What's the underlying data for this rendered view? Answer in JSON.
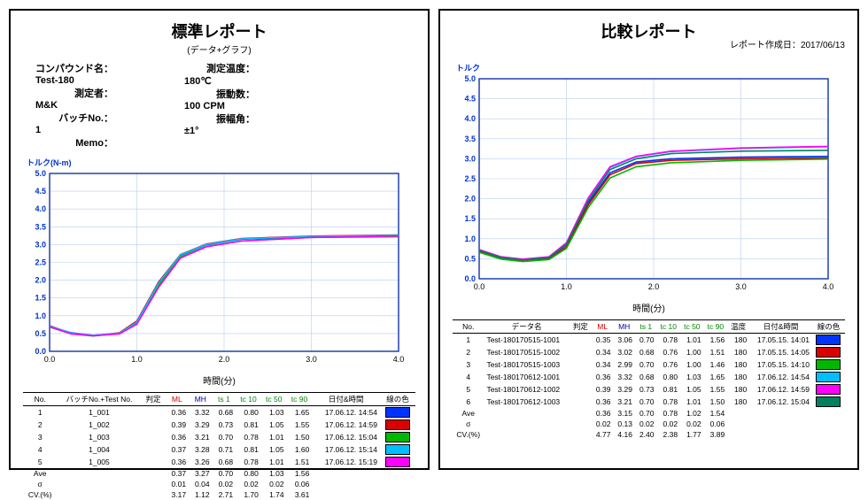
{
  "left": {
    "title": "標準レポート",
    "subtitle": "(データ+グラフ)",
    "meta": {
      "compound_k": "コンパウンド名：",
      "compound_v": "Test-180",
      "operator_k": "測定者：",
      "operator_v": "M&K",
      "batch_k": "バッチNo.：",
      "batch_v": "1",
      "memo_k": "Memo：",
      "memo_v": "",
      "temp_k": "測定温度：",
      "temp_v": "180℃",
      "freq_k": "振動数：",
      "freq_v": "100 CPM",
      "angle_k": "振幅角：",
      "angle_v": "±1°"
    },
    "chart": {
      "ylabel": "トルク(N-m)",
      "xlabel": "時間(分)",
      "xlim": [
        0,
        4
      ],
      "ylim": [
        0,
        5
      ],
      "xtick": 1.0,
      "ytick": 0.5,
      "grid_color": "#b8ccee",
      "border_color": "#1133aa",
      "series": [
        {
          "color": "#0033ff",
          "pts": [
            [
              0,
              0.7
            ],
            [
              0.25,
              0.52
            ],
            [
              0.5,
              0.45
            ],
            [
              0.8,
              0.5
            ],
            [
              1.0,
              0.8
            ],
            [
              1.25,
              1.9
            ],
            [
              1.5,
              2.7
            ],
            [
              1.8,
              3.0
            ],
            [
              2.2,
              3.15
            ],
            [
              3.0,
              3.22
            ],
            [
              4.0,
              3.25
            ]
          ]
        },
        {
          "color": "#d80000",
          "pts": [
            [
              0,
              0.72
            ],
            [
              0.25,
              0.5
            ],
            [
              0.5,
              0.44
            ],
            [
              0.8,
              0.52
            ],
            [
              1.0,
              0.85
            ],
            [
              1.25,
              1.95
            ],
            [
              1.5,
              2.72
            ],
            [
              1.8,
              3.02
            ],
            [
              2.2,
              3.17
            ],
            [
              3.0,
              3.24
            ],
            [
              4.0,
              3.27
            ]
          ]
        },
        {
          "color": "#00b800",
          "pts": [
            [
              0,
              0.68
            ],
            [
              0.25,
              0.49
            ],
            [
              0.5,
              0.43
            ],
            [
              0.8,
              0.5
            ],
            [
              1.0,
              0.78
            ],
            [
              1.25,
              1.85
            ],
            [
              1.5,
              2.65
            ],
            [
              1.8,
              2.95
            ],
            [
              2.2,
              3.1
            ],
            [
              3.0,
              3.2
            ],
            [
              4.0,
              3.22
            ]
          ]
        },
        {
          "color": "#00bfff",
          "pts": [
            [
              0,
              0.71
            ],
            [
              0.25,
              0.51
            ],
            [
              0.5,
              0.45
            ],
            [
              0.8,
              0.51
            ],
            [
              1.0,
              0.82
            ],
            [
              1.25,
              1.92
            ],
            [
              1.5,
              2.71
            ],
            [
              1.8,
              3.01
            ],
            [
              2.2,
              3.16
            ],
            [
              3.0,
              3.23
            ],
            [
              4.0,
              3.26
            ]
          ]
        },
        {
          "color": "#ff00ff",
          "pts": [
            [
              0,
              0.69
            ],
            [
              0.25,
              0.49
            ],
            [
              0.5,
              0.44
            ],
            [
              0.8,
              0.49
            ],
            [
              1.0,
              0.76
            ],
            [
              1.25,
              1.8
            ],
            [
              1.5,
              2.62
            ],
            [
              1.8,
              2.94
            ],
            [
              2.2,
              3.1
            ],
            [
              3.0,
              3.2
            ],
            [
              4.0,
              3.24
            ]
          ]
        }
      ]
    },
    "table": {
      "headers": [
        "No.",
        "バッチNo.+Test No.",
        "判定",
        "ML",
        "MH",
        "ts 1",
        "tc 10",
        "tc 50",
        "tc 90",
        "日付&時間",
        "線の色"
      ],
      "rows": [
        [
          "1",
          "1_001",
          "",
          "0.36",
          "3.32",
          "0.68",
          "0.80",
          "1.03",
          "1.65",
          "17.06.12. 14:54",
          "#0033ff"
        ],
        [
          "2",
          "1_002",
          "",
          "0.39",
          "3.29",
          "0.73",
          "0.81",
          "1.05",
          "1.55",
          "17.06.12. 14:59",
          "#d80000"
        ],
        [
          "3",
          "1_003",
          "",
          "0.36",
          "3.21",
          "0.70",
          "0.78",
          "1.01",
          "1.50",
          "17.06.12. 15:04",
          "#00b800"
        ],
        [
          "4",
          "1_004",
          "",
          "0.37",
          "3.28",
          "0.71",
          "0.81",
          "1.05",
          "1.60",
          "17.06.12. 15:14",
          "#00bfff"
        ],
        [
          "5",
          "1_005",
          "",
          "0.36",
          "3.26",
          "0.68",
          "0.78",
          "1.01",
          "1.51",
          "17.06.12. 15:19",
          "#ff00ff"
        ]
      ],
      "summary": [
        [
          "Ave",
          "",
          "",
          "0.37",
          "3.27",
          "0.70",
          "0.80",
          "1.03",
          "1.56",
          "",
          ""
        ],
        [
          "σ",
          "",
          "",
          "0.01",
          "0.04",
          "0.02",
          "0.02",
          "0.02",
          "0.06",
          "",
          ""
        ],
        [
          "CV.(%)",
          "",
          "",
          "3.17",
          "1.12",
          "2.71",
          "1.70",
          "1.74",
          "3.61",
          "",
          ""
        ]
      ]
    }
  },
  "right": {
    "title": "比較レポート",
    "gen_date_k": "レポート作成日：",
    "gen_date_v": "2017/06/13",
    "chart": {
      "ylabel": "トルク",
      "xlabel": "時間(分)",
      "xlim": [
        0,
        4
      ],
      "ylim": [
        0,
        5
      ],
      "xtick": 1.0,
      "ytick": 0.5,
      "grid_color": "#b8ccee",
      "border_color": "#1133aa",
      "series": [
        {
          "color": "#0033ff",
          "pts": [
            [
              0,
              0.7
            ],
            [
              0.25,
              0.55
            ],
            [
              0.5,
              0.48
            ],
            [
              0.8,
              0.52
            ],
            [
              1.0,
              0.85
            ],
            [
              1.25,
              1.9
            ],
            [
              1.5,
              2.65
            ],
            [
              1.8,
              2.92
            ],
            [
              2.2,
              3.0
            ],
            [
              3.0,
              3.04
            ],
            [
              4.0,
              3.06
            ]
          ]
        },
        {
          "color": "#d80000",
          "pts": [
            [
              0,
              0.68
            ],
            [
              0.25,
              0.5
            ],
            [
              0.5,
              0.44
            ],
            [
              0.8,
              0.49
            ],
            [
              1.0,
              0.8
            ],
            [
              1.25,
              1.85
            ],
            [
              1.5,
              2.6
            ],
            [
              1.8,
              2.88
            ],
            [
              2.2,
              2.96
            ],
            [
              3.0,
              3.0
            ],
            [
              4.0,
              3.02
            ]
          ]
        },
        {
          "color": "#00b800",
          "pts": [
            [
              0,
              0.66
            ],
            [
              0.25,
              0.49
            ],
            [
              0.5,
              0.43
            ],
            [
              0.8,
              0.48
            ],
            [
              1.0,
              0.76
            ],
            [
              1.25,
              1.78
            ],
            [
              1.5,
              2.52
            ],
            [
              1.8,
              2.8
            ],
            [
              2.2,
              2.9
            ],
            [
              3.0,
              2.96
            ],
            [
              4.0,
              2.99
            ]
          ]
        },
        {
          "color": "#00bfff",
          "pts": [
            [
              0,
              0.72
            ],
            [
              0.25,
              0.54
            ],
            [
              0.5,
              0.48
            ],
            [
              0.8,
              0.54
            ],
            [
              1.0,
              0.88
            ],
            [
              1.25,
              2.0
            ],
            [
              1.5,
              2.78
            ],
            [
              1.8,
              3.05
            ],
            [
              2.2,
              3.18
            ],
            [
              3.0,
              3.26
            ],
            [
              4.0,
              3.3
            ]
          ]
        },
        {
          "color": "#ff00ff",
          "pts": [
            [
              0,
              0.73
            ],
            [
              0.25,
              0.55
            ],
            [
              0.5,
              0.49
            ],
            [
              0.8,
              0.55
            ],
            [
              1.0,
              0.9
            ],
            [
              1.25,
              2.02
            ],
            [
              1.5,
              2.8
            ],
            [
              1.8,
              3.06
            ],
            [
              2.2,
              3.19
            ],
            [
              3.0,
              3.27
            ],
            [
              4.0,
              3.31
            ]
          ]
        },
        {
          "color": "#008060",
          "pts": [
            [
              0,
              0.71
            ],
            [
              0.25,
              0.53
            ],
            [
              0.5,
              0.47
            ],
            [
              0.8,
              0.53
            ],
            [
              1.0,
              0.86
            ],
            [
              1.25,
              1.95
            ],
            [
              1.5,
              2.73
            ],
            [
              1.8,
              3.0
            ],
            [
              2.2,
              3.13
            ],
            [
              3.0,
              3.19
            ],
            [
              4.0,
              3.21
            ]
          ]
        }
      ]
    },
    "table": {
      "headers": [
        "No.",
        "データ名",
        "判定",
        "ML",
        "MH",
        "ts 1",
        "tc 10",
        "tc 50",
        "tc 90",
        "温度",
        "日付&時間",
        "線の色"
      ],
      "rows": [
        [
          "1",
          "Test-180170515-1001",
          "",
          "0.35",
          "3.06",
          "0.70",
          "0.78",
          "1.01",
          "1.56",
          "180",
          "17.05.15. 14:01",
          "#0033ff"
        ],
        [
          "2",
          "Test-180170515-1002",
          "",
          "0.34",
          "3.02",
          "0.68",
          "0.76",
          "1.00",
          "1.51",
          "180",
          "17.05.15. 14:05",
          "#d80000"
        ],
        [
          "3",
          "Test-180170515-1003",
          "",
          "0.34",
          "2.99",
          "0.70",
          "0.76",
          "1.00",
          "1.46",
          "180",
          "17.05.15. 14:10",
          "#00b800"
        ],
        [
          "4",
          "Test-180170612-1001",
          "",
          "0.36",
          "3.32",
          "0.68",
          "0.80",
          "1.03",
          "1.65",
          "180",
          "17.06.12. 14:54",
          "#00bfff"
        ],
        [
          "5",
          "Test-180170612-1002",
          "",
          "0.39",
          "3.29",
          "0.73",
          "0.81",
          "1.05",
          "1.55",
          "180",
          "17.06.12. 14:59",
          "#ff00ff"
        ],
        [
          "6",
          "Test-180170612-1003",
          "",
          "0.36",
          "3.21",
          "0.70",
          "0.78",
          "1.01",
          "1.50",
          "180",
          "17.06.12. 15:04",
          "#008060"
        ]
      ],
      "summary": [
        [
          "Ave",
          "",
          "",
          "0.36",
          "3.15",
          "0.70",
          "0.78",
          "1.02",
          "1.54",
          "",
          "",
          ""
        ],
        [
          "σ",
          "",
          "",
          "0.02",
          "0.13",
          "0.02",
          "0.02",
          "0.02",
          "0.06",
          "",
          "",
          ""
        ],
        [
          "CV.(%)",
          "",
          "",
          "4.77",
          "4.16",
          "2.40",
          "2.38",
          "1.77",
          "3.89",
          "",
          "",
          ""
        ]
      ]
    }
  }
}
